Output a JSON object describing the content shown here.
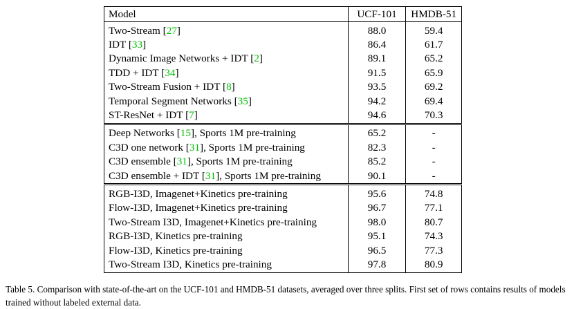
{
  "table": {
    "header": {
      "model": "Model",
      "ucf": "UCF-101",
      "hmdb": "HMDB-51"
    },
    "groups": [
      [
        {
          "model": "Two-Stream [",
          "cite": "27",
          "suffix": "]",
          "ucf": "88.0",
          "hmdb": "59.4"
        },
        {
          "model": "IDT [",
          "cite": "33",
          "suffix": "]",
          "ucf": "86.4",
          "hmdb": "61.7"
        },
        {
          "model": "Dynamic Image Networks + IDT [",
          "cite": "2",
          "suffix": "]",
          "ucf": "89.1",
          "hmdb": "65.2"
        },
        {
          "model": "TDD + IDT [",
          "cite": "34",
          "suffix": "]",
          "ucf": "91.5",
          "hmdb": "65.9"
        },
        {
          "model": "Two-Stream Fusion + IDT [",
          "cite": "8",
          "suffix": "]",
          "ucf": "93.5",
          "hmdb": "69.2"
        },
        {
          "model": "Temporal Segment Networks [",
          "cite": "35",
          "suffix": "]",
          "ucf": "94.2",
          "hmdb": "69.4"
        },
        {
          "model": "ST-ResNet + IDT [",
          "cite": "7",
          "suffix": "]",
          "ucf": "94.6",
          "hmdb": "70.3"
        }
      ],
      [
        {
          "model": "Deep Networks [",
          "cite": "15",
          "suffix": "], Sports 1M pre-training",
          "ucf": "65.2",
          "hmdb": "-"
        },
        {
          "model": "C3D one network [",
          "cite": "31",
          "suffix": "], Sports 1M pre-training",
          "ucf": "82.3",
          "hmdb": "-"
        },
        {
          "model": "C3D ensemble [",
          "cite": "31",
          "suffix": "], Sports 1M pre-training",
          "ucf": "85.2",
          "hmdb": "-"
        },
        {
          "model": "C3D ensemble + IDT [",
          "cite": "31",
          "suffix": "], Sports 1M pre-training",
          "ucf": "90.1",
          "hmdb": "-"
        }
      ],
      [
        {
          "model": "RGB-I3D, Imagenet+Kinetics pre-training",
          "ucf": "95.6",
          "hmdb": "74.8"
        },
        {
          "model": "Flow-I3D, Imagenet+Kinetics pre-training",
          "ucf": "96.7",
          "hmdb": "77.1"
        },
        {
          "model": "Two-Stream I3D, Imagenet+Kinetics pre-training",
          "ucf": "98.0",
          "hmdb": "80.7",
          "bold": "ucf"
        },
        {
          "model": "RGB-I3D, Kinetics pre-training",
          "ucf": "95.1",
          "hmdb": "74.3"
        },
        {
          "model": "Flow-I3D, Kinetics pre-training",
          "ucf": "96.5",
          "hmdb": "77.3"
        },
        {
          "model": "Two-Stream I3D, Kinetics pre-training",
          "ucf": "97.8",
          "hmdb": "80.9",
          "bold": "hmdb"
        }
      ]
    ]
  },
  "caption": "Table 5.  Comparison with state-of-the-art on the UCF-101 and HMDB-51 datasets, averaged over three splits. First set of rows contains results of models trained without labeled external data.",
  "colors": {
    "citation": "#00c000",
    "text": "#000000"
  }
}
